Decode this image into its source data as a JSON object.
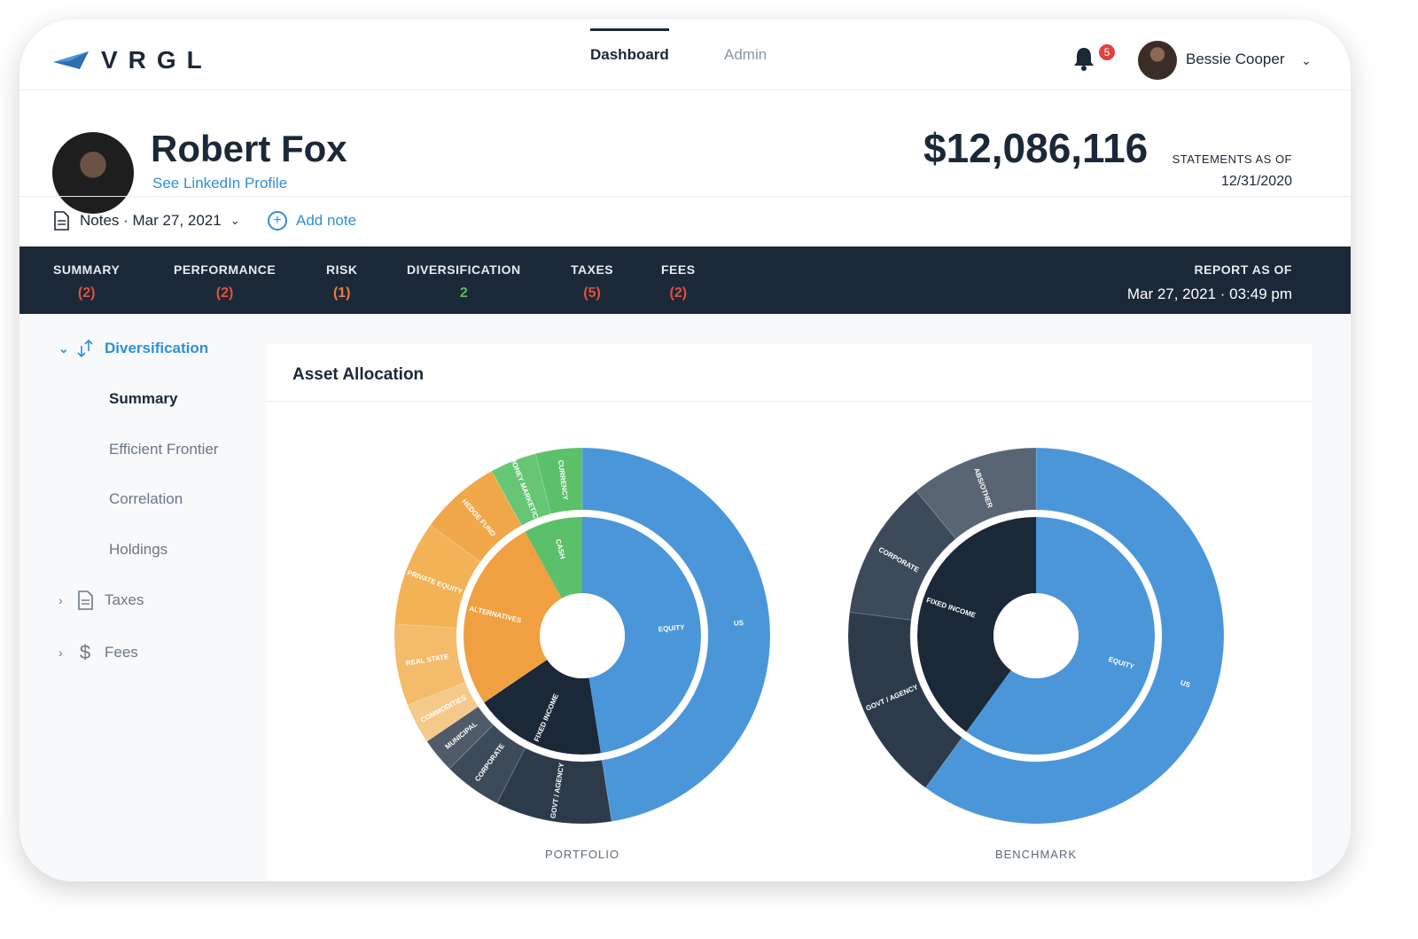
{
  "nav": {
    "brand": "VRGL",
    "tabs": [
      {
        "label": "Dashboard",
        "active": true
      },
      {
        "label": "Admin",
        "active": false
      }
    ],
    "notification_count": "5",
    "user_name": "Bessie Cooper"
  },
  "client": {
    "name": "Robert Fox",
    "linkedin_label": "See LinkedIn Profile",
    "total_value": "$12,086,116",
    "statements_label": "STATEMENTS AS OF",
    "statements_date": "12/31/2020",
    "notes_label": "Notes · Mar 27, 2021",
    "add_note_label": "Add note"
  },
  "report_bar": {
    "items": [
      {
        "label": "SUMMARY",
        "count": "(2)",
        "color": "#e0523e"
      },
      {
        "label": "PERFORMANCE",
        "count": "(2)",
        "color": "#e0523e"
      },
      {
        "label": "RISK",
        "count": "(1)",
        "color": "#f07b3c"
      },
      {
        "label": "DIVERSIFICATION",
        "count": "2",
        "color": "#5cb85c"
      },
      {
        "label": "TAXES",
        "count": "(5)",
        "color": "#e0523e"
      },
      {
        "label": "FEES",
        "count": "(2)",
        "color": "#e0523e"
      }
    ],
    "report_label": "REPORT AS OF",
    "report_date": "Mar 27, 2021 · 03:49 pm"
  },
  "sidebar": {
    "group": "Diversification",
    "items": [
      "Summary",
      "Efficient Frontier",
      "Correlation",
      "Holdings"
    ],
    "current": "Summary",
    "collapsed_groups": [
      "Taxes",
      "Fees"
    ]
  },
  "card": {
    "title": "Asset Allocation"
  },
  "colors": {
    "equity": "#4a96d9",
    "fixed_income_inner": "#1b2838",
    "fixed_income_outer": "#2c3a4a",
    "alternatives": "#f0a040",
    "cash": "#5cbf6a",
    "accent": "#2f8fd8"
  },
  "chart_data": [
    {
      "type": "sunburst",
      "title": "PORTFOLIO",
      "inner": [
        {
          "label": "EQUITY",
          "value": 47.5
        },
        {
          "label": "FIXED INCOME",
          "value": 18
        },
        {
          "label": "ALTERNATIVES",
          "value": 26.5
        },
        {
          "label": "CASH",
          "value": 8
        }
      ],
      "outer": [
        {
          "label": "US",
          "value": 47.5,
          "parent": "EQUITY"
        },
        {
          "label": "GOVT / AGENCY",
          "value": 10,
          "parent": "FIXED INCOME"
        },
        {
          "label": "CORPORATE",
          "value": 5,
          "parent": "FIXED INCOME"
        },
        {
          "label": "MUNICIPAL",
          "value": 3,
          "parent": "FIXED INCOME"
        },
        {
          "label": "COMMODITIES",
          "value": 3.5,
          "parent": "ALTERNATIVES"
        },
        {
          "label": "REAL STATE",
          "value": 7,
          "parent": "ALTERNATIVES"
        },
        {
          "label": "PRIVATE EQUITY",
          "value": 9,
          "parent": "ALTERNATIVES"
        },
        {
          "label": "HEDGE FUND",
          "value": 7,
          "parent": "ALTERNATIVES"
        },
        {
          "label": "MONEY MARKET/CP",
          "value": 4,
          "parent": "CASH"
        },
        {
          "label": "CURRENCY",
          "value": 4,
          "parent": "CASH"
        }
      ]
    },
    {
      "type": "sunburst",
      "title": "BENCHMARK",
      "inner": [
        {
          "label": "EQUITY",
          "value": 60
        },
        {
          "label": "FIXED INCOME",
          "value": 40
        }
      ],
      "outer": [
        {
          "label": "US",
          "value": 60,
          "parent": "EQUITY"
        },
        {
          "label": "GOVT / AGENCY",
          "value": 17,
          "parent": "FIXED INCOME"
        },
        {
          "label": "CORPORATE",
          "value": 12,
          "parent": "FIXED INCOME"
        },
        {
          "label": "ABS/OTHER",
          "value": 11,
          "parent": "FIXED INCOME"
        }
      ]
    }
  ]
}
